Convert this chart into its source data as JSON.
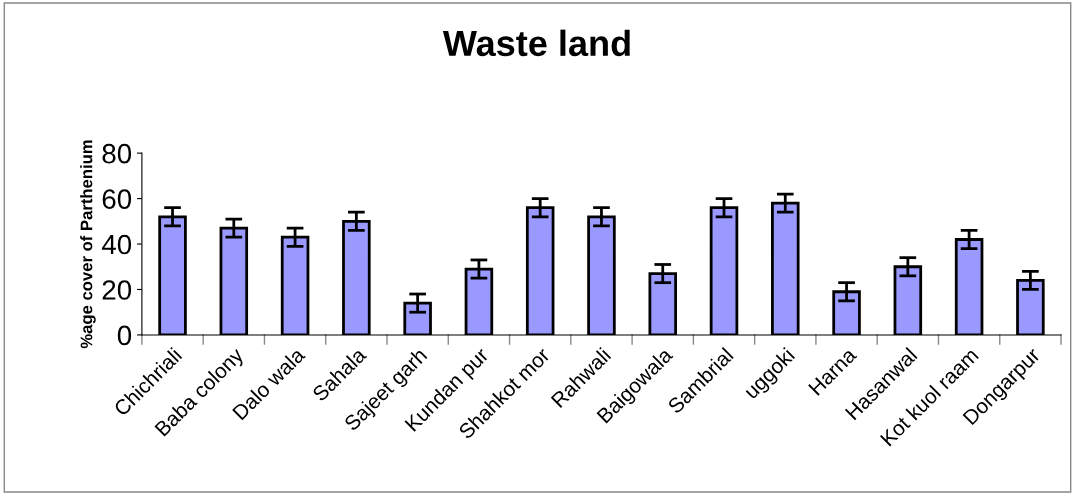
{
  "chart_data": {
    "type": "bar",
    "title": "Waste land",
    "ylabel": "%age cover of Parthenium",
    "categories": [
      "Chichriali",
      "Baba colony",
      "Dalo wala",
      "Sahala",
      "Sajeet garh",
      "Kundan pur",
      "Shahkot mor",
      "Rahwali",
      "Baigowala",
      "Sambrial",
      "uggoki",
      "Harna",
      "Hasanwal",
      "Kot kuol raam",
      "Dongarpur"
    ],
    "values": [
      52,
      47,
      43,
      50,
      14,
      29,
      56,
      52,
      27,
      56,
      58,
      19,
      30,
      42,
      24
    ],
    "errors": [
      4,
      4,
      4,
      4,
      4,
      4,
      4,
      4,
      4,
      4,
      4,
      4,
      4,
      4,
      4
    ],
    "color": "#9999ff",
    "ylim": [
      0,
      80
    ],
    "yticks": [
      0,
      20,
      40,
      60,
      80
    ],
    "grid": false,
    "legend": false
  }
}
